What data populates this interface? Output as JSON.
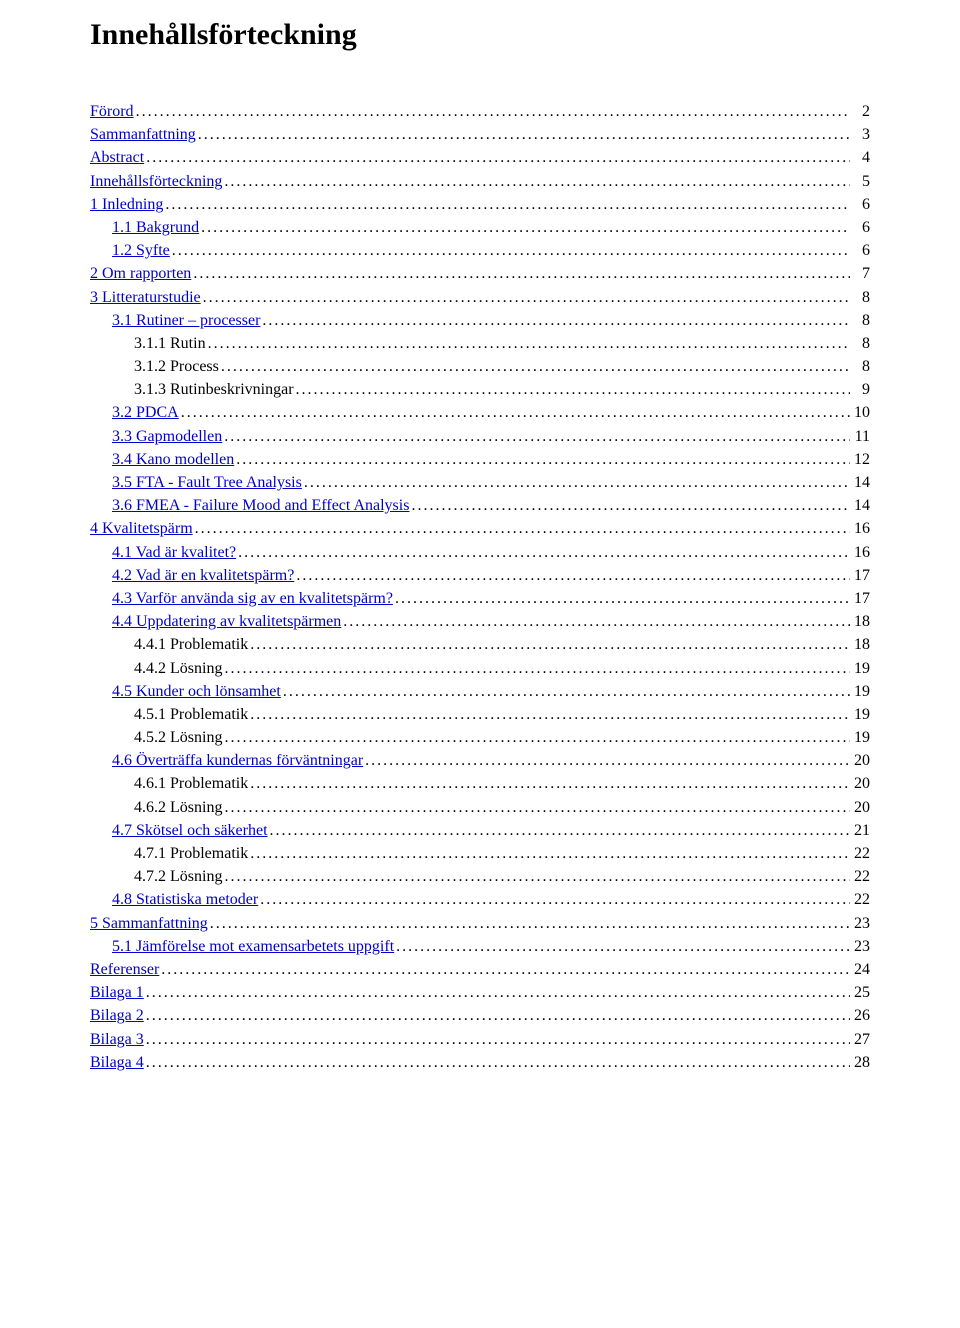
{
  "title": "Innehållsförteckning",
  "link_color": "#0000cc",
  "text_color": "#000000",
  "toc": [
    {
      "label": "Förord",
      "page": "2",
      "indent": 0,
      "link": true
    },
    {
      "label": "Sammanfattning",
      "page": "3",
      "indent": 0,
      "link": true
    },
    {
      "label": "Abstract",
      "page": "4",
      "indent": 0,
      "link": true
    },
    {
      "label": "Innehållsförteckning",
      "page": "5",
      "indent": 0,
      "link": true
    },
    {
      "label": "1 Inledning",
      "page": "6",
      "indent": 0,
      "link": true
    },
    {
      "label": "1.1 Bakgrund",
      "page": "6",
      "indent": 1,
      "link": true
    },
    {
      "label": "1.2 Syfte",
      "page": "6",
      "indent": 1,
      "link": true
    },
    {
      "label": "2 Om rapporten",
      "page": "7",
      "indent": 0,
      "link": true
    },
    {
      "label": "3 Litteraturstudie",
      "page": "8",
      "indent": 0,
      "link": true
    },
    {
      "label": "3.1 Rutiner – processer",
      "page": "8",
      "indent": 1,
      "link": true
    },
    {
      "label": "3.1.1 Rutin",
      "page": "8",
      "indent": 2,
      "link": false
    },
    {
      "label": "3.1.2 Process",
      "page": "8",
      "indent": 2,
      "link": false
    },
    {
      "label": "3.1.3 Rutinbeskrivningar",
      "page": "9",
      "indent": 2,
      "link": false
    },
    {
      "label": "3.2 PDCA",
      "page": "10",
      "indent": 1,
      "link": true
    },
    {
      "label": "3.3 Gapmodellen",
      "page": "11",
      "indent": 1,
      "link": true
    },
    {
      "label": "3.4 Kano modellen",
      "page": "12",
      "indent": 1,
      "link": true
    },
    {
      "label": "3.5 FTA - Fault Tree Analysis",
      "page": "14",
      "indent": 1,
      "link": true
    },
    {
      "label": "3.6 FMEA - Failure Mood and Effect Analysis",
      "page": "14",
      "indent": 1,
      "link": true
    },
    {
      "label": "4 Kvalitetspärm",
      "page": "16",
      "indent": 0,
      "link": true
    },
    {
      "label": "4.1  Vad är kvalitet?",
      "page": "16",
      "indent": 1,
      "link": true
    },
    {
      "label": "4.2 Vad är en kvalitetspärm?",
      "page": "17",
      "indent": 1,
      "link": true
    },
    {
      "label": "4.3 Varför använda sig av en kvalitetspärm?",
      "page": "17",
      "indent": 1,
      "link": true
    },
    {
      "label": "4.4 Uppdatering av kvalitetspärmen",
      "page": "18",
      "indent": 1,
      "link": true
    },
    {
      "label": "4.4.1 Problematik",
      "page": "18",
      "indent": 2,
      "link": false
    },
    {
      "label": "4.4.2 Lösning",
      "page": "19",
      "indent": 2,
      "link": false
    },
    {
      "label": "4.5 Kunder och lönsamhet",
      "page": "19",
      "indent": 1,
      "link": true
    },
    {
      "label": "4.5.1 Problematik",
      "page": "19",
      "indent": 2,
      "link": false
    },
    {
      "label": "4.5.2 Lösning",
      "page": "19",
      "indent": 2,
      "link": false
    },
    {
      "label": "4.6 Överträffa kundernas förväntningar",
      "page": "20",
      "indent": 1,
      "link": true
    },
    {
      "label": "4.6.1 Problematik",
      "page": "20",
      "indent": 2,
      "link": false
    },
    {
      "label": "4.6.2 Lösning",
      "page": "20",
      "indent": 2,
      "link": false
    },
    {
      "label": "4.7 Skötsel och säkerhet",
      "page": "21",
      "indent": 1,
      "link": true
    },
    {
      "label": "4.7.1 Problematik",
      "page": "22",
      "indent": 2,
      "link": false
    },
    {
      "label": "4.7.2 Lösning",
      "page": "22",
      "indent": 2,
      "link": false
    },
    {
      "label": "4.8 Statistiska metoder",
      "page": "22",
      "indent": 1,
      "link": true
    },
    {
      "label": "5 Sammanfattning",
      "page": "23",
      "indent": 0,
      "link": true
    },
    {
      "label": "5.1 Jämförelse mot examensarbetets uppgift",
      "page": "23",
      "indent": 1,
      "link": true
    },
    {
      "label": "Referenser",
      "page": "24",
      "indent": 0,
      "link": true
    },
    {
      "label": "Bilaga 1",
      "page": "25",
      "indent": 0,
      "link": true
    },
    {
      "label": "Bilaga 2",
      "page": "26",
      "indent": 0,
      "link": true
    },
    {
      "label": "Bilaga 3",
      "page": "27",
      "indent": 0,
      "link": true
    },
    {
      "label": "Bilaga 4",
      "page": "28",
      "indent": 0,
      "link": true
    }
  ]
}
